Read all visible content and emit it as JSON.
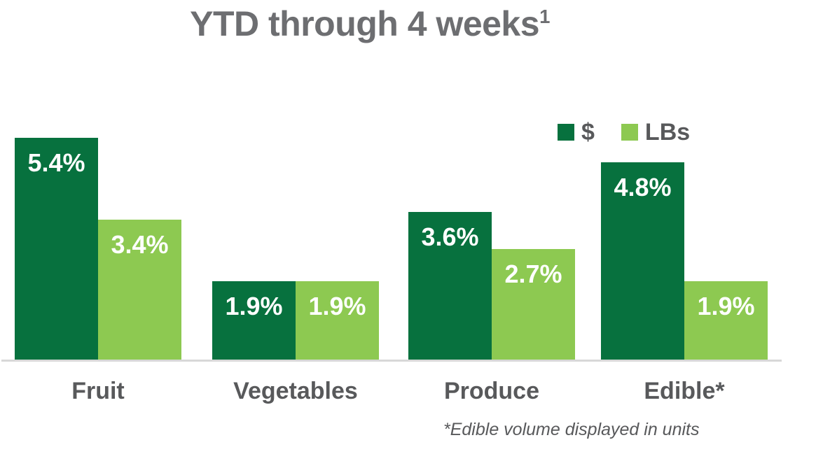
{
  "title": {
    "text": "YTD through 4 weeks",
    "superscript": "1"
  },
  "legend": {
    "items": [
      {
        "label": "$",
        "color_key": "dollars"
      },
      {
        "label": "LBs",
        "color_key": "lbs"
      }
    ]
  },
  "footnote": "*Edible volume displayed in units",
  "colors": {
    "dollars": "#07713E",
    "lbs": "#8DC951",
    "title_gray": "#6D6E71",
    "text_gray": "#58595B",
    "axis_line": "#D8D8D8",
    "bar_label": "#FFFFFF",
    "background": "#FFFFFF"
  },
  "chart_data": {
    "type": "bar",
    "title": "YTD through 4 weeks¹",
    "categories": [
      "Fruit",
      "Vegetables",
      "Produce",
      "Edible*"
    ],
    "series": [
      {
        "name": "$",
        "color_key": "dollars",
        "values": [
          5.4,
          1.9,
          3.6,
          4.8
        ]
      },
      {
        "name": "LBs",
        "color_key": "lbs",
        "values": [
          3.4,
          1.9,
          2.7,
          1.9
        ]
      }
    ],
    "value_suffix": "%",
    "value_labels": "inside-top",
    "xlabel": "",
    "ylabel": "",
    "ylim": [
      0,
      6
    ],
    "grid": false,
    "y_axis_visible": false,
    "legend_position": "top-right",
    "footnote": "*Edible volume displayed in units"
  }
}
